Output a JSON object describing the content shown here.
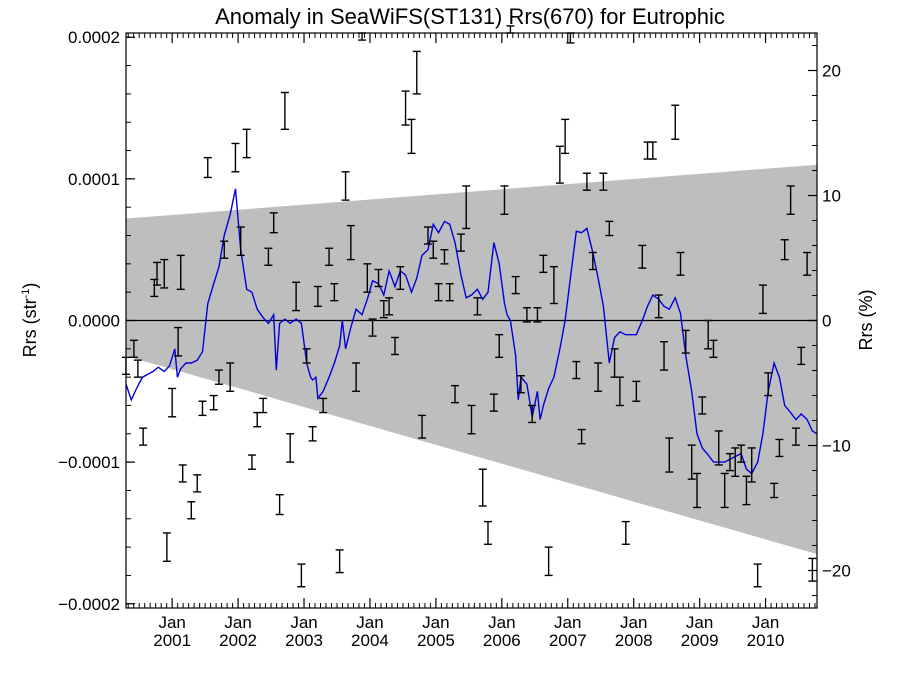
{
  "chart_data": {
    "type": "scatter",
    "title": "Anomaly in SeaWiFS(ST131) Rrs(670) for Eutrophic",
    "ylabel": "Rrs (str",
    "ylabel_sup": "-1",
    "ylabel_close": ")",
    "y2label": "Rrs (%)",
    "xlim": [
      2000.3,
      2010.78
    ],
    "ylim": [
      -0.000203,
      0.000203
    ],
    "y2lim": [
      -23.0,
      23.0
    ],
    "yticks": [
      {
        "value": 0.0002,
        "label": "0.0002"
      },
      {
        "value": 0.0001,
        "label": "0.0001"
      },
      {
        "value": 0.0,
        "label": "0.0000"
      },
      {
        "value": -0.0001,
        "label": "−0.0001"
      },
      {
        "value": -0.0002,
        "label": "−0.0002"
      }
    ],
    "y2ticks": [
      {
        "value": 20,
        "label": "20"
      },
      {
        "value": 10,
        "label": "10"
      },
      {
        "value": 0,
        "label": "0"
      },
      {
        "value": -10,
        "label": "−10"
      },
      {
        "value": -20,
        "label": "−20"
      }
    ],
    "xticks": [
      {
        "value": 2001.0,
        "month": "Jan",
        "year": "2001"
      },
      {
        "value": 2002.0,
        "month": "Jan",
        "year": "2002"
      },
      {
        "value": 2003.0,
        "month": "Jan",
        "year": "2003"
      },
      {
        "value": 2004.0,
        "month": "Jan",
        "year": "2004"
      },
      {
        "value": 2005.0,
        "month": "Jan",
        "year": "2005"
      },
      {
        "value": 2006.0,
        "month": "Jan",
        "year": "2006"
      },
      {
        "value": 2007.0,
        "month": "Jan",
        "year": "2007"
      },
      {
        "value": 2008.0,
        "month": "Jan",
        "year": "2008"
      },
      {
        "value": 2009.0,
        "month": "Jan",
        "year": "2009"
      },
      {
        "value": 2010.0,
        "month": "Jan",
        "year": "2010"
      }
    ],
    "uncertainty_band": {
      "color": "#bebebe",
      "upper": [
        [
          2000.3,
          7.2e-05
        ],
        [
          2010.78,
          0.00011
        ]
      ],
      "lower": [
        [
          2000.3,
          -2.5e-05
        ],
        [
          2010.78,
          -0.000165
        ]
      ]
    },
    "zero_line": 0.0,
    "smoothed_series": {
      "color": "#0000dd",
      "points": [
        [
          2000.3,
          -4.5e-05
        ],
        [
          2000.38,
          -5.6e-05
        ],
        [
          2000.46,
          -4.8e-05
        ],
        [
          2000.55,
          -4e-05
        ],
        [
          2000.63,
          -3.8e-05
        ],
        [
          2000.71,
          -3.6e-05
        ],
        [
          2000.79,
          -3.3e-05
        ],
        [
          2000.88,
          -3.6e-05
        ],
        [
          2000.96,
          -3.2e-05
        ],
        [
          2001.04,
          -2e-05
        ],
        [
          2001.08,
          -4e-05
        ],
        [
          2001.13,
          -3.4e-05
        ],
        [
          2001.21,
          -3e-05
        ],
        [
          2001.29,
          -3e-05
        ],
        [
          2001.38,
          -2.8e-05
        ],
        [
          2001.46,
          -2.2e-05
        ],
        [
          2001.54,
          1.2e-05
        ],
        [
          2001.63,
          2.6e-05
        ],
        [
          2001.71,
          3.8e-05
        ],
        [
          2001.79,
          6e-05
        ],
        [
          2001.88,
          7.5e-05
        ],
        [
          2001.96,
          9.3e-05
        ],
        [
          2002.04,
          5e-05
        ],
        [
          2002.13,
          2.2e-05
        ],
        [
          2002.21,
          2e-05
        ],
        [
          2002.29,
          8e-06
        ],
        [
          2002.38,
          2e-06
        ],
        [
          2002.46,
          -2e-06
        ],
        [
          2002.54,
          4e-06
        ],
        [
          2002.58,
          -3.5e-05
        ],
        [
          2002.63,
          -2e-06
        ],
        [
          2002.71,
          1e-06
        ],
        [
          2002.79,
          -2e-06
        ],
        [
          2002.88,
          1e-06
        ],
        [
          2002.96,
          -2e-06
        ],
        [
          2003.04,
          -3e-05
        ],
        [
          2003.1,
          -4e-05
        ],
        [
          2003.13,
          -4.2e-05
        ],
        [
          2003.18,
          -4e-05
        ],
        [
          2003.21,
          -5.5e-05
        ],
        [
          2003.29,
          -5e-05
        ],
        [
          2003.38,
          -4e-05
        ],
        [
          2003.46,
          -3e-05
        ],
        [
          2003.54,
          -1.8e-05
        ],
        [
          2003.58,
          0.0
        ],
        [
          2003.63,
          -2e-05
        ],
        [
          2003.71,
          -5e-06
        ],
        [
          2003.79,
          8e-06
        ],
        [
          2003.88,
          4e-06
        ],
        [
          2003.96,
          1.5e-05
        ],
        [
          2004.04,
          2.8e-05
        ],
        [
          2004.13,
          2.6e-05
        ],
        [
          2004.21,
          1.8e-05
        ],
        [
          2004.29,
          3.5e-05
        ],
        [
          2004.38,
          2.4e-05
        ],
        [
          2004.46,
          3.5e-05
        ],
        [
          2004.54,
          3.2e-05
        ],
        [
          2004.63,
          2e-05
        ],
        [
          2004.71,
          3e-05
        ],
        [
          2004.79,
          4.6e-05
        ],
        [
          2004.88,
          5e-05
        ],
        [
          2004.96,
          6.8e-05
        ],
        [
          2005.04,
          6.2e-05
        ],
        [
          2005.13,
          7e-05
        ],
        [
          2005.21,
          6.8e-05
        ],
        [
          2005.29,
          5.5e-05
        ],
        [
          2005.38,
          3.2e-05
        ],
        [
          2005.46,
          1.6e-05
        ],
        [
          2005.54,
          1.8e-05
        ],
        [
          2005.63,
          2.2e-05
        ],
        [
          2005.71,
          1.5e-05
        ],
        [
          2005.79,
          2e-05
        ],
        [
          2005.88,
          5.5e-05
        ],
        [
          2005.96,
          4e-05
        ],
        [
          2006.04,
          1.2e-05
        ],
        [
          2006.08,
          4e-06
        ],
        [
          2006.13,
          0.0
        ],
        [
          2006.21,
          -2.5e-05
        ],
        [
          2006.25,
          -5.6e-05
        ],
        [
          2006.29,
          -4e-05
        ],
        [
          2006.38,
          -4.5e-05
        ],
        [
          2006.46,
          -6.8e-05
        ],
        [
          2006.54,
          -5e-05
        ],
        [
          2006.58,
          -7e-05
        ],
        [
          2006.63,
          -6e-05
        ],
        [
          2006.71,
          -4.8e-05
        ],
        [
          2006.79,
          -4e-05
        ],
        [
          2006.88,
          -2e-05
        ],
        [
          2006.96,
          0.0
        ],
        [
          2007.04,
          3e-05
        ],
        [
          2007.13,
          6.3e-05
        ],
        [
          2007.21,
          6.2e-05
        ],
        [
          2007.29,
          6.5e-05
        ],
        [
          2007.38,
          4.8e-05
        ],
        [
          2007.46,
          3e-05
        ],
        [
          2007.54,
          1e-05
        ],
        [
          2007.63,
          -3e-05
        ],
        [
          2007.71,
          -1.2e-05
        ],
        [
          2007.79,
          -8e-06
        ],
        [
          2007.88,
          -1e-05
        ],
        [
          2007.96,
          -1e-05
        ],
        [
          2008.04,
          -1e-05
        ],
        [
          2008.13,
          0.0
        ],
        [
          2008.21,
          1e-05
        ],
        [
          2008.29,
          1.8e-05
        ],
        [
          2008.38,
          1.5e-05
        ],
        [
          2008.46,
          1e-05
        ],
        [
          2008.54,
          8e-06
        ],
        [
          2008.63,
          1.6e-05
        ],
        [
          2008.71,
          5e-06
        ],
        [
          2008.79,
          -2.5e-05
        ],
        [
          2008.88,
          -5e-05
        ],
        [
          2008.96,
          -8e-05
        ],
        [
          2009.04,
          -9e-05
        ],
        [
          2009.13,
          -9.5e-05
        ],
        [
          2009.21,
          -0.0001
        ],
        [
          2009.29,
          -0.0001
        ],
        [
          2009.38,
          -0.0001
        ],
        [
          2009.46,
          -9.8e-05
        ],
        [
          2009.54,
          -9.6e-05
        ],
        [
          2009.63,
          -9.4e-05
        ],
        [
          2009.71,
          -0.000105
        ],
        [
          2009.79,
          -0.000108
        ],
        [
          2009.88,
          -0.0001
        ],
        [
          2009.96,
          -8e-05
        ],
        [
          2010.04,
          -5e-05
        ],
        [
          2010.13,
          -3e-05
        ],
        [
          2010.21,
          -4e-05
        ],
        [
          2010.29,
          -6e-05
        ],
        [
          2010.38,
          -6.5e-05
        ],
        [
          2010.46,
          -7e-05
        ],
        [
          2010.54,
          -6.6e-05
        ],
        [
          2010.63,
          -7e-05
        ],
        [
          2010.71,
          -7.8e-05
        ],
        [
          2010.78,
          -8e-05
        ]
      ]
    },
    "error_bar_points": {
      "color": "#000000",
      "points": [
        [
          2000.3,
          -3.2e-05,
          6e-06
        ],
        [
          2000.42,
          -2e-05,
          6e-06
        ],
        [
          2000.48,
          -3.4e-05,
          6e-06
        ],
        [
          2000.56,
          -8.2e-05,
          6e-06
        ],
        [
          2000.73,
          2.3e-05,
          6e-06
        ],
        [
          2000.77,
          3.3e-05,
          8e-06
        ],
        [
          2000.88,
          3.3e-05,
          1e-05
        ],
        [
          2000.92,
          -0.00016,
          1e-05
        ],
        [
          2001.0,
          -5.8e-05,
          1e-05
        ],
        [
          2001.09,
          -1.5e-05,
          1e-05
        ],
        [
          2001.13,
          3.4e-05,
          1.2e-05
        ],
        [
          2001.16,
          -0.000108,
          6e-06
        ],
        [
          2001.29,
          -0.000134,
          6e-06
        ],
        [
          2001.38,
          -0.000115,
          6e-06
        ],
        [
          2001.46,
          -6.2e-05,
          5e-06
        ],
        [
          2001.54,
          0.000108,
          7e-06
        ],
        [
          2001.63,
          -5.8e-05,
          5e-06
        ],
        [
          2001.71,
          -4e-05,
          5e-06
        ],
        [
          2001.79,
          5e-05,
          6e-06
        ],
        [
          2001.88,
          -4e-05,
          1e-05
        ],
        [
          2001.96,
          0.000115,
          1e-05
        ],
        [
          2002.04,
          5.6e-05,
          1e-05
        ],
        [
          2002.13,
          0.000125,
          1e-05
        ],
        [
          2002.21,
          -0.0001,
          5e-06
        ],
        [
          2002.29,
          -7e-05,
          5e-06
        ],
        [
          2002.38,
          -6e-05,
          5e-06
        ],
        [
          2002.46,
          4.5e-05,
          6e-06
        ],
        [
          2002.54,
          6.9e-05,
          7e-06
        ],
        [
          2002.63,
          -0.00013,
          7e-06
        ],
        [
          2002.71,
          0.000148,
          1.3e-05
        ],
        [
          2002.79,
          -9e-05,
          1e-05
        ],
        [
          2002.88,
          1.7e-05,
          1e-05
        ],
        [
          2002.96,
          -0.00018,
          8e-06
        ],
        [
          2003.04,
          -2.5e-05,
          5e-06
        ],
        [
          2003.13,
          -8e-05,
          5e-06
        ],
        [
          2003.21,
          1.7e-05,
          7e-06
        ],
        [
          2003.29,
          -6e-05,
          5e-06
        ],
        [
          2003.38,
          4.5e-05,
          6e-06
        ],
        [
          2003.46,
          2e-05,
          6e-06
        ],
        [
          2003.54,
          -0.00017,
          8e-06
        ],
        [
          2003.63,
          9.5e-05,
          1e-05
        ],
        [
          2003.71,
          5.5e-05,
          1.2e-05
        ],
        [
          2003.79,
          -4e-05,
          1e-05
        ],
        [
          2003.88,
          0.00021,
          1.2e-05
        ],
        [
          2003.96,
          3e-05,
          1e-05
        ],
        [
          2004.04,
          -5e-06,
          6e-06
        ],
        [
          2004.13,
          3e-05,
          6e-06
        ],
        [
          2004.21,
          8e-06,
          6e-06
        ],
        [
          2004.29,
          1e-05,
          6e-06
        ],
        [
          2004.38,
          -1.8e-05,
          6e-06
        ],
        [
          2004.46,
          3e-05,
          8e-06
        ],
        [
          2004.54,
          0.00015,
          1.2e-05
        ],
        [
          2004.63,
          0.00013,
          1.2e-05
        ],
        [
          2004.71,
          0.000175,
          1.5e-05
        ],
        [
          2004.79,
          -7.5e-05,
          8e-06
        ],
        [
          2004.88,
          6e-05,
          6e-06
        ],
        [
          2004.96,
          5e-05,
          6e-06
        ],
        [
          2005.04,
          2e-05,
          6e-06
        ],
        [
          2005.13,
          4.5e-05,
          5e-06
        ],
        [
          2005.21,
          2e-05,
          6e-06
        ],
        [
          2005.29,
          -5.2e-05,
          6e-06
        ],
        [
          2005.38,
          5.5e-05,
          6e-06
        ],
        [
          2005.46,
          8e-05,
          1.5e-05
        ],
        [
          2005.54,
          -7e-05,
          1e-05
        ],
        [
          2005.63,
          1e-05,
          6e-06
        ],
        [
          2005.71,
          -0.000118,
          1.3e-05
        ],
        [
          2005.79,
          -0.00015,
          8e-06
        ],
        [
          2005.88,
          -5.8e-05,
          6e-06
        ],
        [
          2005.96,
          -1.8e-05,
          8e-06
        ],
        [
          2006.04,
          8.5e-05,
          1e-05
        ],
        [
          2006.13,
          0.00022,
          1.2e-05
        ],
        [
          2006.21,
          2.5e-05,
          6e-06
        ],
        [
          2006.29,
          -4.5e-05,
          6e-06
        ],
        [
          2006.38,
          4e-06,
          5e-06
        ],
        [
          2006.46,
          -6.6e-05,
          6e-06
        ],
        [
          2006.54,
          4e-06,
          5e-06
        ],
        [
          2006.63,
          4e-05,
          6e-06
        ],
        [
          2006.71,
          -0.00017,
          1e-05
        ],
        [
          2006.79,
          2.5e-05,
          1.3e-05
        ],
        [
          2006.88,
          0.00011,
          1.3e-05
        ],
        [
          2006.96,
          0.00013,
          1.2e-05
        ],
        [
          2007.04,
          0.000208,
          1.2e-05
        ],
        [
          2007.13,
          -3.5e-05,
          6e-06
        ],
        [
          2007.21,
          -8.2e-05,
          5e-06
        ],
        [
          2007.29,
          9.8e-05,
          6e-06
        ],
        [
          2007.38,
          4.2e-05,
          6e-06
        ],
        [
          2007.46,
          -4e-05,
          1e-05
        ],
        [
          2007.54,
          9.8e-05,
          6e-06
        ],
        [
          2007.63,
          6.5e-05,
          5e-06
        ],
        [
          2007.71,
          -3e-05,
          1e-05
        ],
        [
          2007.79,
          -5e-05,
          1e-05
        ],
        [
          2007.88,
          -0.00015,
          8e-06
        ],
        [
          2008.04,
          -5e-05,
          7e-06
        ],
        [
          2008.13,
          4.5e-05,
          8e-06
        ],
        [
          2008.21,
          0.00012,
          6e-06
        ],
        [
          2008.29,
          0.00012,
          6e-06
        ],
        [
          2008.38,
          1e-05,
          8e-06
        ],
        [
          2008.46,
          -2.5e-05,
          1e-05
        ],
        [
          2008.54,
          -9.5e-05,
          1.2e-05
        ],
        [
          2008.63,
          0.00014,
          1.2e-05
        ],
        [
          2008.71,
          4e-05,
          8e-06
        ],
        [
          2008.79,
          -1.5e-05,
          8e-06
        ],
        [
          2008.88,
          -0.0001,
          1.2e-05
        ],
        [
          2008.96,
          -0.00012,
          1.2e-05
        ],
        [
          2009.04,
          -6e-05,
          6e-06
        ],
        [
          2009.13,
          -1e-05,
          1e-05
        ],
        [
          2009.21,
          -2e-05,
          6e-06
        ],
        [
          2009.29,
          -9e-05,
          1.2e-05
        ],
        [
          2009.38,
          -0.00012,
          1.2e-05
        ],
        [
          2009.46,
          -0.0001,
          6e-06
        ],
        [
          2009.54,
          -0.0001,
          1e-05
        ],
        [
          2009.63,
          -9.4e-05,
          6e-06
        ],
        [
          2009.71,
          -0.00012,
          1e-05
        ],
        [
          2009.79,
          -0.000102,
          1.2e-05
        ],
        [
          2009.88,
          -0.00018,
          8e-06
        ],
        [
          2009.96,
          1.5e-05,
          1e-05
        ],
        [
          2010.04,
          -4.5e-05,
          8e-06
        ],
        [
          2010.13,
          -0.00012,
          5e-06
        ],
        [
          2010.21,
          -9e-05,
          6e-06
        ],
        [
          2010.29,
          5e-05,
          7e-06
        ],
        [
          2010.38,
          8.5e-05,
          1e-05
        ],
        [
          2010.46,
          -8.2e-05,
          6e-06
        ],
        [
          2010.54,
          -2.5e-05,
          6e-06
        ],
        [
          2010.63,
          4e-05,
          8e-06
        ],
        [
          2010.71,
          -0.000176,
          8e-06
        ]
      ]
    },
    "grid": false,
    "legend": "none"
  }
}
